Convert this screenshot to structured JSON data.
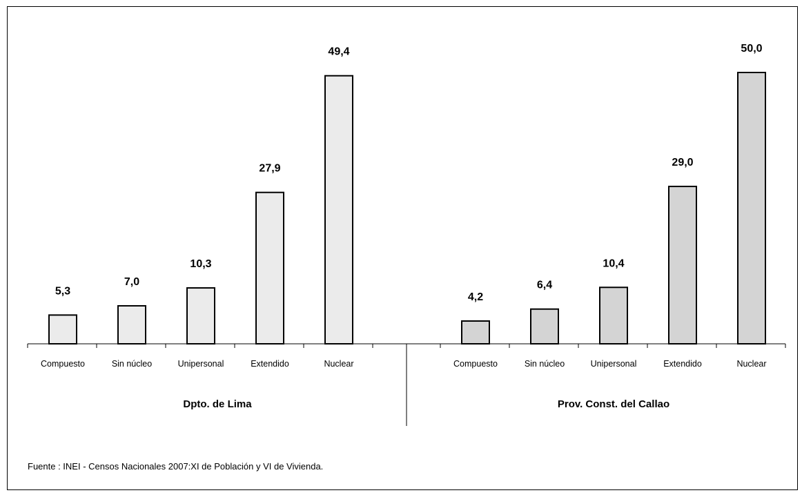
{
  "chart_data": {
    "type": "bar",
    "groups": [
      {
        "name": "Dpto. de Lima",
        "categories": [
          "Compuesto",
          "Sin núcleo",
          "Unipersonal",
          "Extendido",
          "Nuclear"
        ],
        "values": [
          5.3,
          7.0,
          10.3,
          27.9,
          49.4
        ],
        "value_labels": [
          "5,3",
          "7,0",
          "10,3",
          "27,9",
          "49,4"
        ],
        "color": "#ebebeb"
      },
      {
        "name": "Prov. Const. del Callao",
        "categories": [
          "Compuesto",
          "Sin núcleo",
          "Unipersonal",
          "Extendido",
          "Nuclear"
        ],
        "values": [
          4.2,
          6.4,
          10.4,
          29.0,
          50.0
        ],
        "value_labels": [
          "4,2",
          "6,4",
          "10,4",
          "29,0",
          "50,0"
        ],
        "color": "#d4d4d4"
      }
    ],
    "ylim": [
      0,
      50
    ],
    "grid": false,
    "legend": "none"
  },
  "source": "Fuente : INEI - Censos Nacionales 2007:XI de Población y VI de Vivienda."
}
